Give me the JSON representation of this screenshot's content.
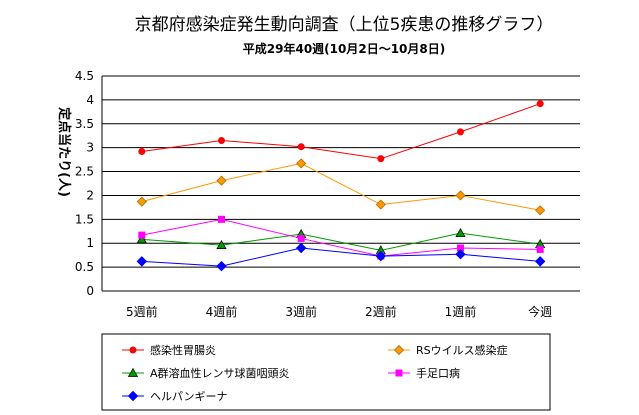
{
  "chart_data": {
    "type": "line",
    "title": "京都府感染症発生動向調査（上位5疾患の推移グラフ）",
    "subtitle": "平成29年40週(10月2日〜10月8日)",
    "ylabel": "定点当たり(人)",
    "xlabel": "",
    "ylim": [
      0,
      4.5
    ],
    "yticks": [
      "0",
      "0.5",
      "1",
      "1.5",
      "2",
      "2.5",
      "3",
      "3.5",
      "4",
      "4.5"
    ],
    "categories": [
      "5週前",
      "4週前",
      "3週前",
      "2週前",
      "1週前",
      "今週"
    ],
    "grid": true,
    "legend_position": "bottom",
    "series": [
      {
        "name": "感染性胃腸炎",
        "color": "#ff0000",
        "marker": "circle",
        "values": [
          2.92,
          3.15,
          3.02,
          2.77,
          3.33,
          3.92
        ]
      },
      {
        "name": "RSウイルス感染症",
        "color": "#ff9900",
        "marker": "diamond",
        "values": [
          1.87,
          2.31,
          2.67,
          1.81,
          2.0,
          1.69
        ]
      },
      {
        "name": "A群溶血性レンサ球菌咽頭炎",
        "color": "#009900",
        "marker": "triangle",
        "values": [
          1.08,
          0.96,
          1.19,
          0.85,
          1.21,
          0.98
        ]
      },
      {
        "name": "手足口病",
        "color": "#ff00ff",
        "marker": "square",
        "values": [
          1.17,
          1.5,
          1.1,
          0.73,
          0.9,
          0.87
        ]
      },
      {
        "name": "ヘルパンギーナ",
        "color": "#0000ff",
        "marker": "diamond",
        "values": [
          0.62,
          0.52,
          0.9,
          0.73,
          0.77,
          0.62
        ]
      }
    ]
  }
}
